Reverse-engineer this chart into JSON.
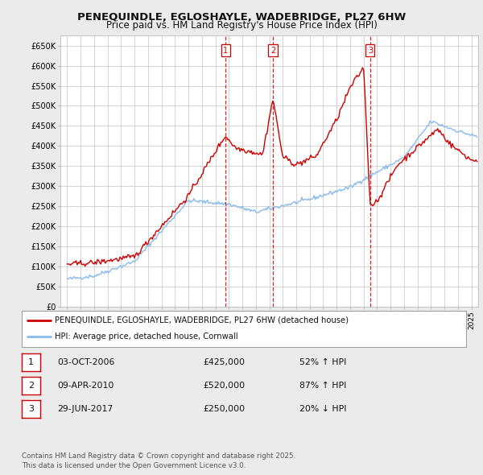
{
  "title": "PENEQUINDLE, EGLOSHAYLE, WADEBRIDGE, PL27 6HW",
  "subtitle": "Price paid vs. HM Land Registry's House Price Index (HPI)",
  "ylim": [
    0,
    675000
  ],
  "yticks": [
    0,
    50000,
    100000,
    150000,
    200000,
    250000,
    300000,
    350000,
    400000,
    450000,
    500000,
    550000,
    600000,
    650000
  ],
  "ytick_labels": [
    "£0",
    "£50K",
    "£100K",
    "£150K",
    "£200K",
    "£250K",
    "£300K",
    "£350K",
    "£400K",
    "£450K",
    "£500K",
    "£550K",
    "£600K",
    "£650K"
  ],
  "background_color": "#ebebeb",
  "plot_bg_color": "#ffffff",
  "grid_color": "#cccccc",
  "red_line_color": "#cc0000",
  "blue_line_color": "#88bbee",
  "sale_markers": [
    {
      "label": "1",
      "date_x": 2006.75,
      "price": 425000
    },
    {
      "label": "2",
      "date_x": 2010.27,
      "price": 520000
    },
    {
      "label": "3",
      "date_x": 2017.49,
      "price": 250000
    }
  ],
  "legend_entries": [
    {
      "color": "#cc0000",
      "label": "PENEQUINDLE, EGLOSHAYLE, WADEBRIDGE, PL27 6HW (detached house)"
    },
    {
      "color": "#88bbee",
      "label": "HPI: Average price, detached house, Cornwall"
    }
  ],
  "table_rows": [
    {
      "num": "1",
      "date": "03-OCT-2006",
      "price": "£425,000",
      "hpi": "52% ↑ HPI"
    },
    {
      "num": "2",
      "date": "09-APR-2010",
      "price": "£520,000",
      "hpi": "87% ↑ HPI"
    },
    {
      "num": "3",
      "date": "29-JUN-2017",
      "price": "£250,000",
      "hpi": "20% ↓ HPI"
    }
  ],
  "footer": "Contains HM Land Registry data © Crown copyright and database right 2025.\nThis data is licensed under the Open Government Licence v3.0.",
  "title_fontsize": 9.5,
  "subtitle_fontsize": 8.5,
  "xlim_left": 1994.5,
  "xlim_right": 2025.5
}
